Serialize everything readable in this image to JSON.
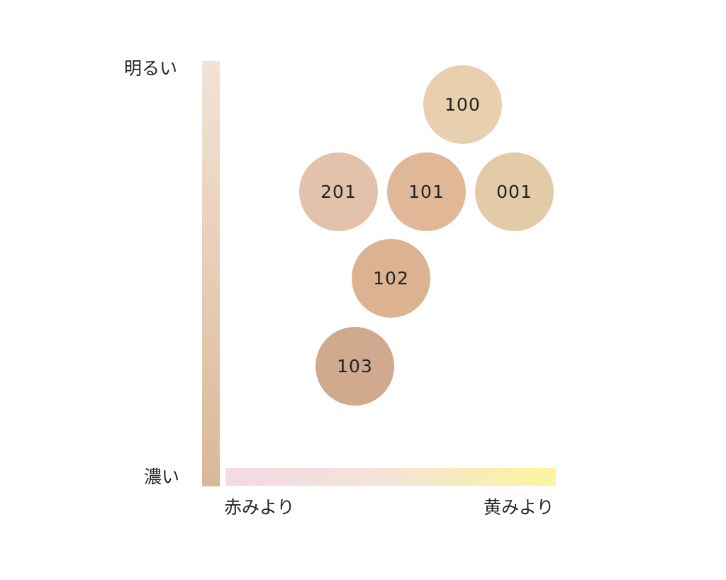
{
  "axes": {
    "vertical": {
      "top_label": "明るい",
      "bottom_label": "濃い",
      "gradient": [
        "#f3e3d5",
        "#d9b898"
      ]
    },
    "horizontal": {
      "left_label": "赤みより",
      "right_label": "黄みより",
      "gradient": [
        "#f4d9e6",
        "#f5e3d6",
        "#fcf49e"
      ]
    }
  },
  "shades": [
    {
      "code": "100",
      "color": "#e8cfae"
    },
    {
      "code": "201",
      "color": "#e2c2aa"
    },
    {
      "code": "101",
      "color": "#e0b898"
    },
    {
      "code": "001",
      "color": "#e3cba8"
    },
    {
      "code": "102",
      "color": "#dbb393"
    },
    {
      "code": "103",
      "color": "#d0a98f"
    }
  ]
}
